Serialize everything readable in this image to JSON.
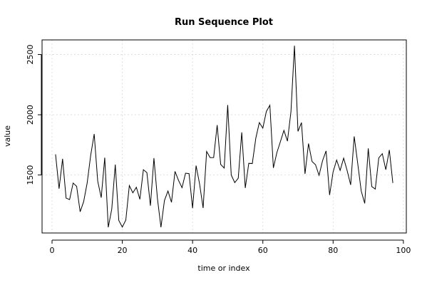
{
  "chart_data": {
    "type": "line",
    "title": "Run Sequence Plot",
    "xlabel": "time or index",
    "ylabel": "value",
    "xlim": [
      -2.84,
      100.84
    ],
    "ylim": [
      1018.5,
      2621.5
    ],
    "x_ticks": [
      0,
      20,
      40,
      60,
      80,
      100
    ],
    "y_ticks": [
      1500,
      2000,
      2500
    ],
    "grid": true,
    "line_color": "#000000",
    "series": [
      {
        "x": [
          1,
          2,
          3,
          4,
          5,
          6,
          7,
          8,
          9,
          10,
          11,
          12,
          13,
          14,
          15,
          16,
          17,
          18,
          19,
          20,
          21,
          22,
          23,
          24,
          25,
          26,
          27,
          28,
          29,
          30,
          31,
          32,
          33,
          34,
          35,
          36,
          37,
          38,
          39,
          40,
          41,
          42,
          43,
          44,
          45,
          46,
          47,
          48,
          49,
          50,
          51,
          52,
          53,
          54,
          55,
          56,
          57,
          58,
          59,
          60,
          61,
          62,
          63,
          64,
          65,
          66,
          67,
          68,
          69,
          70,
          71,
          72,
          73,
          74,
          75,
          76,
          77,
          78,
          79,
          80,
          81,
          82,
          83,
          84,
          85,
          86,
          87,
          88,
          89,
          90,
          91,
          92,
          93,
          94,
          95,
          96,
          97
        ],
        "values": [
          1672,
          1386,
          1634,
          1308,
          1296,
          1433,
          1406,
          1195,
          1279,
          1434,
          1663,
          1840,
          1449,
          1312,
          1644,
          1066,
          1217,
          1586,
          1123,
          1068,
          1126,
          1412,
          1352,
          1398,
          1298,
          1544,
          1520,
          1245,
          1640,
          1304,
          1066,
          1289,
          1367,
          1273,
          1530,
          1455,
          1395,
          1515,
          1511,
          1224,
          1578,
          1425,
          1226,
          1695,
          1644,
          1645,
          1914,
          1588,
          1558,
          2081,
          1500,
          1437,
          1473,
          1854,
          1392,
          1597,
          1595,
          1806,
          1935,
          1889,
          2028,
          2079,
          1559,
          1686,
          1777,
          1870,
          1781,
          2025,
          2573,
          1862,
          1935,
          1509,
          1761,
          1612,
          1585,
          1497,
          1619,
          1700,
          1334,
          1526,
          1624,
          1538,
          1640,
          1536,
          1418,
          1820,
          1597,
          1367,
          1264,
          1721,
          1404,
          1383,
          1642,
          1677,
          1544,
          1708,
          1434
        ]
      }
    ]
  }
}
